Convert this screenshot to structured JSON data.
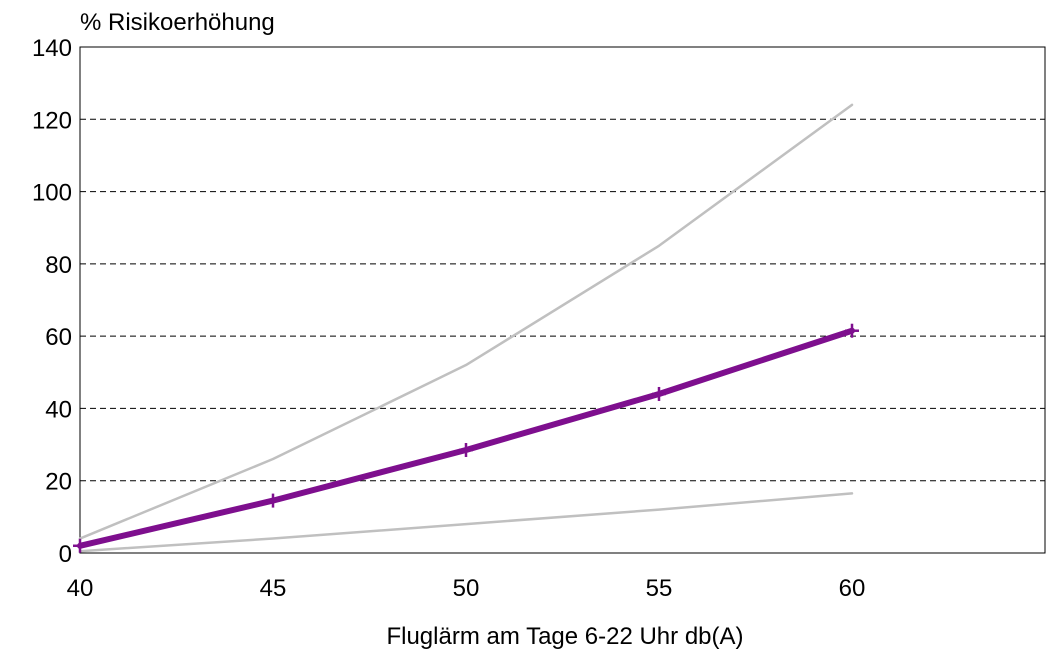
{
  "chart_data": {
    "type": "line",
    "title": "",
    "ylabel": "% Risikoerhöhung",
    "xlabel": "Fluglärm am Tage 6-22 Uhr db(A)",
    "xlim": [
      40,
      65
    ],
    "ylim": [
      0,
      140
    ],
    "x_ticks": [
      40,
      45,
      50,
      55,
      60
    ],
    "y_ticks": [
      0,
      20,
      40,
      60,
      80,
      100,
      120,
      140
    ],
    "grid": "horizontal dashed",
    "legend": "none",
    "series": [
      {
        "x": [
          40,
          45,
          50,
          55,
          60
        ],
        "values": [
          2,
          14.5,
          28.5,
          44,
          61.5
        ],
        "color": "#7e0f8e",
        "markers": "plus",
        "style": "thick"
      },
      {
        "x": [
          40,
          45,
          50,
          55,
          60
        ],
        "values": [
          4,
          26,
          52,
          85,
          124
        ],
        "color": "#c0c0c0",
        "style": "thin"
      },
      {
        "x": [
          40,
          45,
          50,
          55,
          60
        ],
        "values": [
          0.5,
          4,
          8,
          12,
          16.5
        ],
        "color": "#c0c0c0",
        "style": "thin"
      }
    ]
  }
}
